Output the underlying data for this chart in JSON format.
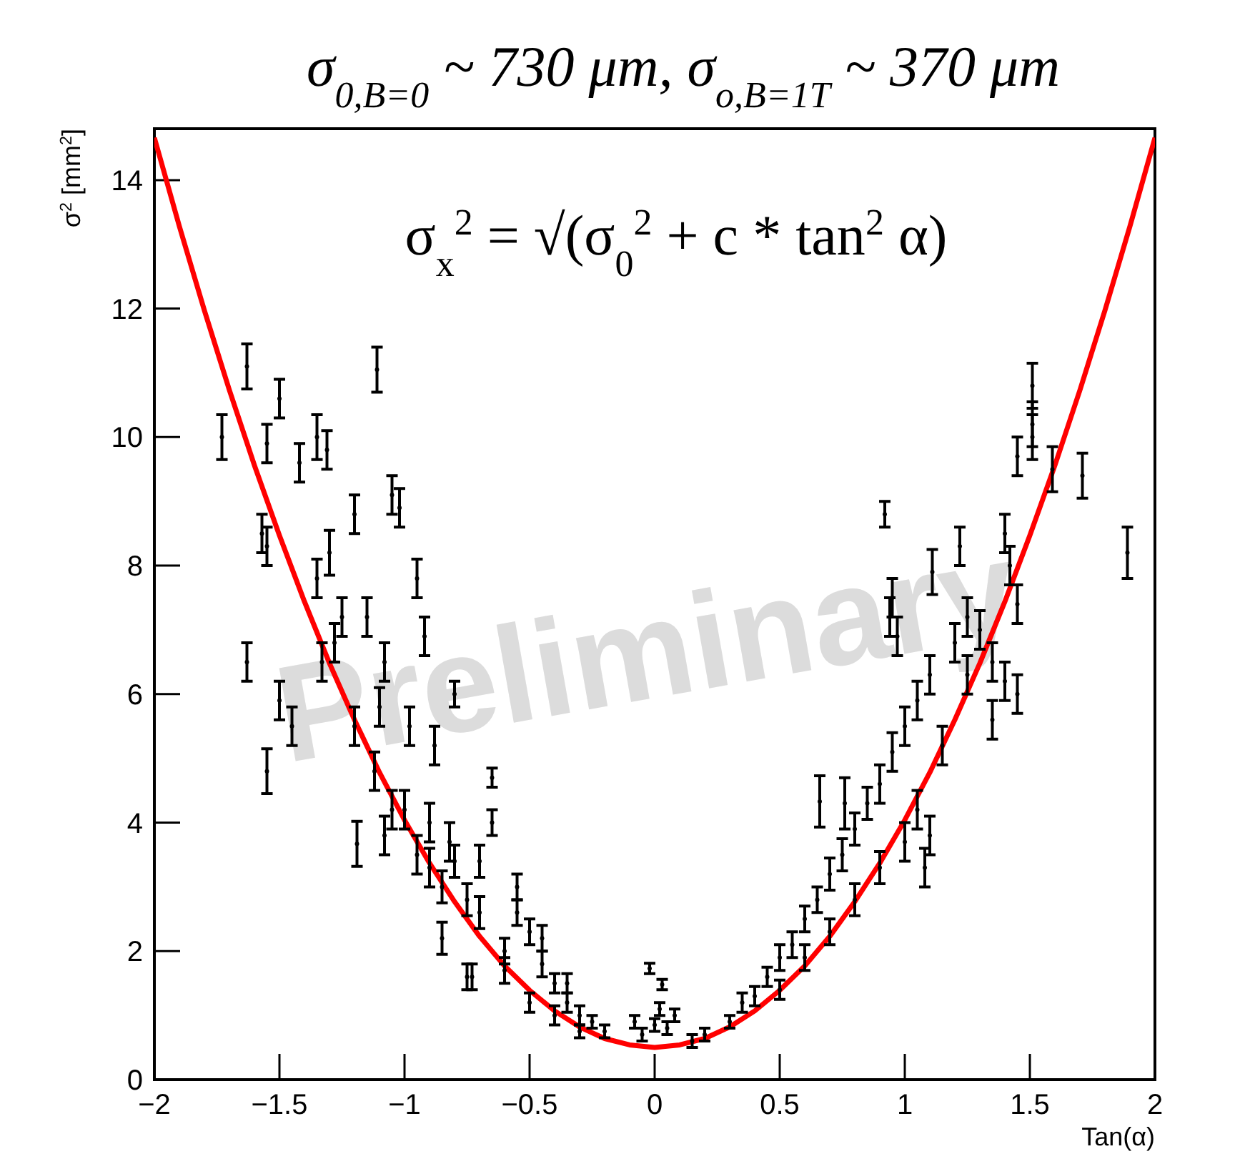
{
  "chart_data": {
    "type": "scatter",
    "title": "σ$_{0,B=0}$ ~ 730 μm, σ$_{o,B=1T}$ ~ 370 μm",
    "xlabel": "Tan(α)",
    "ylabel": "σ$^{2}$ [mm$^{2}$]",
    "xlim": [
      -2,
      2
    ],
    "xticks": [
      -2,
      -1.5,
      -1,
      -0.5,
      0,
      0.5,
      1,
      1.5,
      2
    ],
    "ylim": [
      0,
      14.8
    ],
    "yticks": [
      0,
      2,
      4,
      6,
      8,
      10,
      12,
      14
    ],
    "grid": false,
    "annotations": [
      "σ$_{x}$$^{2}$ = √(σ$_{0}$$^{2}$ + c * tan$^{2}$ α)",
      "Preliminary"
    ],
    "series": [
      {
        "color": "#000000",
        "marker": "circle",
        "x": [
          -1.63,
          -1.73,
          -1.55,
          -1.5,
          -1.35,
          -1.31,
          -1.11,
          -1.42,
          -1.57,
          -1.55,
          -1.3,
          -1.2,
          -1.05,
          -1.02,
          -1.35,
          -1.25,
          -1.63,
          -1.5,
          -1.45,
          -1.55,
          -1.33,
          -1.28,
          -1.15,
          -1.08,
          -0.95,
          -0.92,
          -0.88,
          -0.8,
          -0.98,
          -1.1,
          -1.2,
          -1.12,
          -1.05,
          -1.08,
          -1.19,
          -1.0,
          -0.95,
          -0.9,
          -0.85,
          -0.8,
          -0.75,
          -0.7,
          -0.65,
          -0.65,
          -0.55,
          -0.5,
          -0.45,
          -0.4,
          -0.35,
          -0.3,
          -0.25,
          -0.2,
          -0.85,
          -0.75,
          -0.6,
          -0.5,
          -0.4,
          -0.3,
          -0.7,
          -0.73,
          -0.9,
          -0.82,
          -0.6,
          -0.55,
          -0.45,
          -0.35,
          -0.02,
          0.03,
          -0.08,
          0,
          0.05,
          -0.05,
          0.08,
          0.02,
          0.15,
          0.2,
          0.3,
          0.35,
          0.4,
          0.45,
          0.5,
          0.55,
          0.6,
          0.65,
          0.7,
          0.75,
          0.8,
          0.85,
          0.9,
          0.95,
          1.0,
          1.05,
          1.1,
          1.2,
          1.25,
          1.3,
          1.35,
          1.4,
          0.5,
          0.6,
          0.7,
          0.8,
          0.9,
          1.0,
          1.05,
          1.1,
          0.66,
          0.76,
          1.08,
          1.51,
          1.51,
          1.51,
          1.45,
          1.59,
          1.71,
          1.89,
          0.92,
          1.22,
          1.11,
          0.95,
          0.94,
          0.97,
          1.4,
          1.42,
          1.45,
          1.35,
          1.45,
          1.25,
          1.15
        ],
        "values": [
          11.1,
          10.0,
          9.9,
          10.6,
          10.0,
          9.8,
          11.05,
          9.6,
          8.5,
          8.3,
          8.2,
          8.8,
          9.1,
          8.9,
          7.8,
          7.2,
          6.5,
          5.9,
          5.5,
          4.8,
          6.5,
          6.8,
          7.2,
          6.5,
          7.8,
          6.9,
          5.2,
          6.0,
          5.5,
          5.8,
          5.5,
          4.8,
          4.2,
          3.8,
          3.67,
          4.2,
          3.5,
          3.3,
          3.0,
          3.4,
          2.8,
          2.6,
          4.7,
          4.0,
          3.0,
          2.3,
          1.8,
          1.5,
          1.2,
          1.0,
          0.9,
          0.75,
          2.2,
          1.6,
          1.7,
          1.2,
          1.0,
          0.75,
          3.4,
          1.6,
          4.0,
          3.7,
          2.0,
          2.6,
          2.2,
          1.5,
          1.73,
          1.48,
          0.9,
          0.85,
          0.8,
          0.7,
          1.0,
          1.1,
          0.6,
          0.7,
          0.9,
          1.2,
          1.3,
          1.6,
          1.9,
          2.1,
          2.5,
          2.8,
          3.2,
          3.5,
          3.9,
          4.3,
          4.6,
          5.1,
          5.5,
          5.9,
          6.3,
          6.8,
          7.2,
          7.0,
          6.5,
          6.2,
          1.4,
          1.9,
          2.3,
          2.8,
          3.3,
          3.7,
          4.2,
          3.8,
          4.33,
          4.3,
          3.3,
          10.8,
          10.2,
          10.0,
          9.7,
          9.5,
          9.4,
          8.2,
          8.8,
          8.3,
          7.9,
          7.5,
          7.2,
          6.9,
          8.5,
          8.0,
          7.4,
          5.6,
          6.0,
          6.3,
          5.2
        ],
        "errors": [
          0.35,
          0.35,
          0.3,
          0.3,
          0.35,
          0.3,
          0.35,
          0.3,
          0.3,
          0.3,
          0.35,
          0.3,
          0.3,
          0.3,
          0.3,
          0.3,
          0.3,
          0.3,
          0.3,
          0.35,
          0.3,
          0.3,
          0.3,
          0.3,
          0.3,
          0.3,
          0.3,
          0.2,
          0.3,
          0.3,
          0.3,
          0.3,
          0.3,
          0.3,
          0.35,
          0.3,
          0.3,
          0.3,
          0.25,
          0.25,
          0.25,
          0.25,
          0.15,
          0.2,
          0.2,
          0.2,
          0.2,
          0.15,
          0.15,
          0.15,
          0.1,
          0.1,
          0.25,
          0.2,
          0.2,
          0.15,
          0.15,
          0.1,
          0.25,
          0.2,
          0.3,
          0.3,
          0.2,
          0.2,
          0.2,
          0.15,
          0.08,
          0.08,
          0.1,
          0.1,
          0.1,
          0.1,
          0.1,
          0.1,
          0.1,
          0.1,
          0.1,
          0.15,
          0.15,
          0.15,
          0.2,
          0.2,
          0.2,
          0.2,
          0.25,
          0.25,
          0.25,
          0.25,
          0.3,
          0.3,
          0.3,
          0.3,
          0.3,
          0.3,
          0.3,
          0.3,
          0.3,
          0.3,
          0.15,
          0.2,
          0.2,
          0.25,
          0.25,
          0.3,
          0.3,
          0.3,
          0.4,
          0.4,
          0.3,
          0.35,
          0.35,
          0.35,
          0.3,
          0.35,
          0.35,
          0.4,
          0.2,
          0.3,
          0.35,
          0.3,
          0.3,
          0.3,
          0.3,
          0.3,
          0.3,
          0.3,
          0.3,
          0.3,
          0.3
        ]
      },
      {
        "type": "line",
        "color": "#ff0000",
        "line_style": "solid",
        "x": [
          -2,
          -1.9,
          -1.8,
          -1.7,
          -1.6,
          -1.5,
          -1.4,
          -1.3,
          -1.2,
          -1.1,
          -1,
          -0.9,
          -0.8,
          -0.7,
          -0.6,
          -0.5,
          -0.4,
          -0.3,
          -0.2,
          -0.1,
          0,
          0.1,
          0.2,
          0.3,
          0.4,
          0.5,
          0.6,
          0.7,
          0.8,
          0.9,
          1,
          1.1,
          1.2,
          1.3,
          1.4,
          1.5,
          1.6,
          1.7,
          1.8,
          1.9,
          2
        ],
        "values": [
          14.66,
          13.28,
          11.97,
          10.73,
          9.56,
          8.47,
          7.44,
          6.48,
          5.6,
          4.78,
          4.04,
          3.37,
          2.77,
          2.23,
          1.77,
          1.39,
          1.07,
          0.82,
          0.64,
          0.54,
          0.5,
          0.54,
          0.64,
          0.82,
          1.07,
          1.39,
          1.77,
          2.23,
          2.77,
          3.37,
          4.04,
          4.78,
          5.6,
          6.48,
          7.44,
          8.47,
          9.56,
          10.73,
          11.97,
          13.28,
          14.66
        ]
      }
    ]
  }
}
